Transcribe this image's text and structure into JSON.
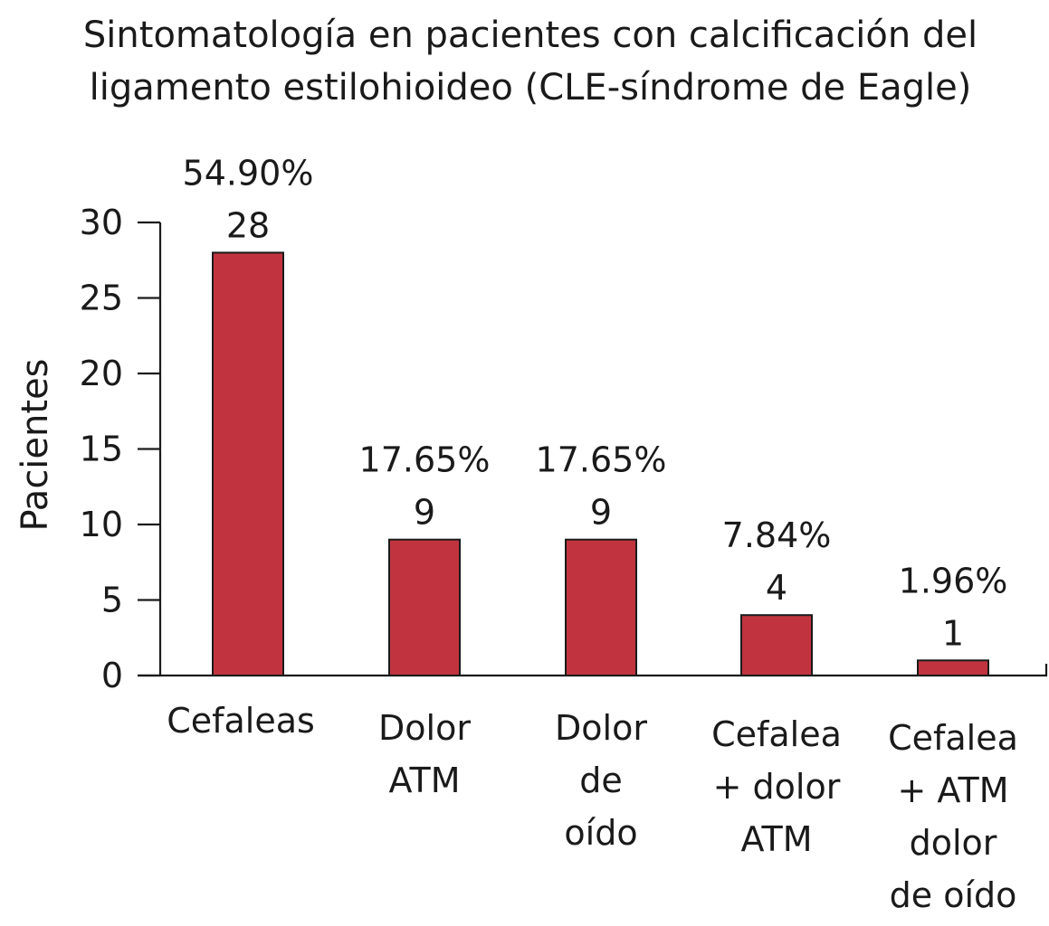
{
  "chart_data": {
    "type": "bar",
    "title_lines": [
      "Sintomatología en pacientes con calcificación del",
      "ligamento estilohioideo (CLE-síndrome de Eagle)"
    ],
    "ylabel": "Pacientes",
    "xlabel": "",
    "ylim": [
      0,
      30
    ],
    "yticks": [
      "0",
      "5",
      "10",
      "15",
      "20",
      "25",
      "30"
    ],
    "categories": [
      [
        "Cefaleas"
      ],
      [
        "Dolor",
        "ATM"
      ],
      [
        "Dolor",
        "de",
        "oído"
      ],
      [
        "Cefalea",
        "+ dolor",
        "ATM"
      ],
      [
        "Cefalea",
        "+ ATM",
        "dolor",
        "de oído"
      ]
    ],
    "values": [
      28,
      9,
      9,
      4,
      1
    ],
    "value_labels": [
      "28",
      "9",
      "9",
      "4",
      "1"
    ],
    "percent_labels": [
      "54.90%",
      "17.65%",
      "17.65%",
      "7.84%",
      "1.96%"
    ],
    "bar_color": "#c1343f",
    "grid": false
  }
}
